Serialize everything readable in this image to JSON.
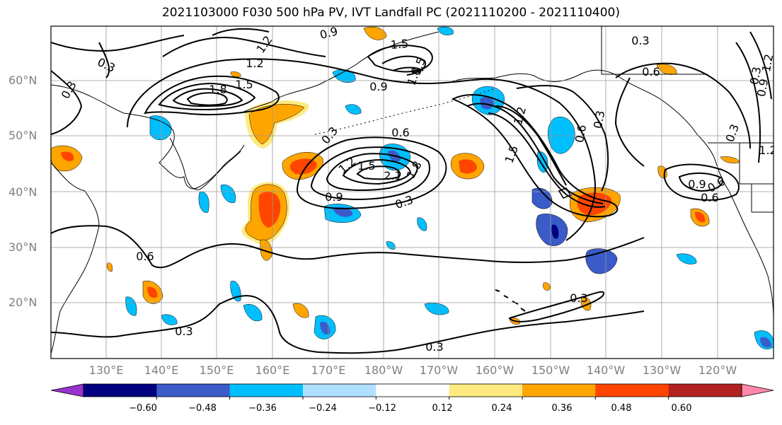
{
  "title": "2021103000 F030 500 hPa PV, IVT Landfall PC (2021110200 - 2021110400)",
  "lat_labels": [
    "60°N",
    "50°N",
    "40°N",
    "30°N",
    "20°N"
  ],
  "lon_labels": [
    "130°E",
    "140°E",
    "150°E",
    "160°E",
    "170°E",
    "180°W",
    "170°W",
    "160°W",
    "150°W",
    "140°W",
    "130°W",
    "120°W"
  ],
  "colorbar": {
    "ticks": [
      "−0.60",
      "−0.48",
      "−0.36",
      "−0.24",
      "−0.12",
      "0.12",
      "0.24",
      "0.36",
      "0.48",
      "0.60"
    ],
    "colors": [
      "#9932cc",
      "#000080",
      "#3a5bc8",
      "#00bfff",
      "#b0e0ff",
      "#ffffff",
      "#ffea80",
      "#ffa500",
      "#ff4500",
      "#b22222",
      "#ff88aa"
    ]
  },
  "contour_labels": [
    "1.2",
    "1.2",
    "1.5",
    "1.8",
    "0.9",
    "0.3",
    "1.5",
    "1.8",
    "1.5",
    "0.9",
    "0.3",
    "0.6",
    "1.2",
    "1.5",
    "2.1",
    "1.8",
    "0.9",
    "0.3",
    "0.3",
    "0.6",
    "1.2",
    "1.5",
    "0.3",
    "0.6",
    "0.6",
    "0.9",
    "0.6",
    "0.6",
    "0.3",
    "0.3",
    "0.3",
    "0.3",
    "0.9",
    "0.3",
    "0.3",
    "1.2",
    "1.2"
  ]
}
